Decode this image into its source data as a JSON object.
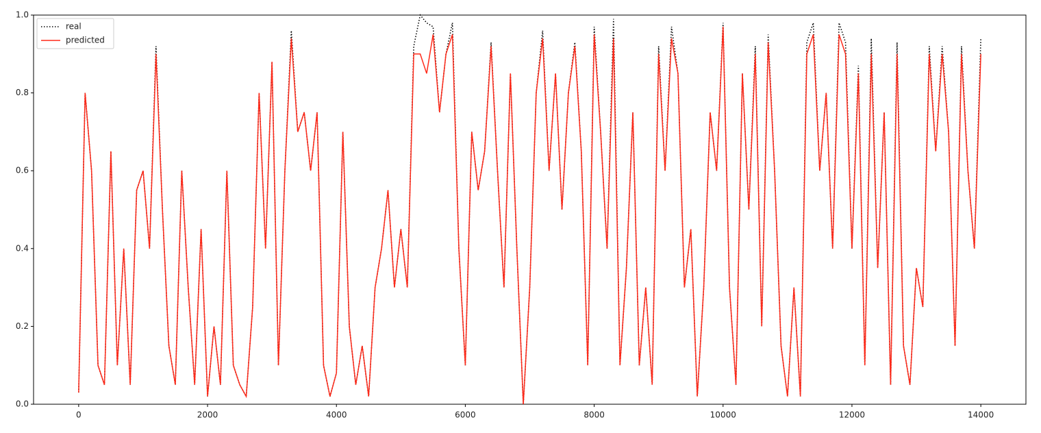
{
  "chart_data": {
    "type": "line",
    "x": [
      0,
      100,
      200,
      300,
      400,
      500,
      600,
      700,
      800,
      900,
      1000,
      1100,
      1200,
      1300,
      1400,
      1500,
      1600,
      1700,
      1800,
      1900,
      2000,
      2100,
      2200,
      2300,
      2400,
      2500,
      2600,
      2700,
      2800,
      2900,
      3000,
      3100,
      3200,
      3300,
      3400,
      3500,
      3600,
      3700,
      3800,
      3900,
      4000,
      4100,
      4200,
      4300,
      4400,
      4500,
      4600,
      4700,
      4800,
      4900,
      5000,
      5100,
      5200,
      5300,
      5400,
      5500,
      5600,
      5700,
      5800,
      5900,
      6000,
      6100,
      6200,
      6300,
      6400,
      6500,
      6600,
      6700,
      6800,
      6900,
      7000,
      7100,
      7200,
      7300,
      7400,
      7500,
      7600,
      7700,
      7800,
      7900,
      8000,
      8100,
      8200,
      8300,
      8400,
      8500,
      8600,
      8700,
      8800,
      8900,
      9000,
      9100,
      9200,
      9300,
      9400,
      9500,
      9600,
      9700,
      9800,
      9900,
      10000,
      10100,
      10200,
      10300,
      10400,
      10500,
      10600,
      10700,
      10800,
      10900,
      11000,
      11100,
      11200,
      11300,
      11400,
      11500,
      11600,
      11700,
      11800,
      11900,
      12000,
      12100,
      12200,
      12300,
      12400,
      12500,
      12600,
      12700,
      12800,
      12900,
      13000,
      13100,
      13200,
      13300,
      13400,
      13500,
      13600,
      13700,
      13800,
      13900,
      14000
    ],
    "series": [
      {
        "name": "real",
        "color": "#000000",
        "dash": "dotted",
        "values": [
          0.03,
          0.8,
          0.6,
          0.1,
          0.05,
          0.65,
          0.1,
          0.4,
          0.05,
          0.55,
          0.6,
          0.4,
          0.92,
          0.5,
          0.15,
          0.05,
          0.6,
          0.3,
          0.05,
          0.45,
          0.02,
          0.2,
          0.05,
          0.6,
          0.1,
          0.05,
          0.02,
          0.25,
          0.8,
          0.4,
          0.88,
          0.1,
          0.6,
          0.96,
          0.7,
          0.75,
          0.6,
          0.75,
          0.1,
          0.02,
          0.08,
          0.7,
          0.2,
          0.05,
          0.15,
          0.02,
          0.3,
          0.4,
          0.55,
          0.3,
          0.45,
          0.3,
          0.92,
          1.0,
          0.98,
          0.97,
          0.75,
          0.9,
          0.98,
          0.4,
          0.1,
          0.7,
          0.55,
          0.65,
          0.93,
          0.6,
          0.3,
          0.85,
          0.4,
          0.0,
          0.3,
          0.8,
          0.96,
          0.6,
          0.85,
          0.5,
          0.8,
          0.93,
          0.65,
          0.1,
          0.97,
          0.7,
          0.4,
          0.99,
          0.1,
          0.35,
          0.75,
          0.1,
          0.3,
          0.05,
          0.92,
          0.6,
          0.97,
          0.85,
          0.3,
          0.45,
          0.02,
          0.3,
          0.75,
          0.6,
          0.98,
          0.3,
          0.05,
          0.85,
          0.5,
          0.92,
          0.2,
          0.95,
          0.6,
          0.15,
          0.02,
          0.3,
          0.02,
          0.93,
          0.98,
          0.6,
          0.8,
          0.4,
          0.98,
          0.93,
          0.4,
          0.87,
          0.1,
          0.94,
          0.35,
          0.75,
          0.05,
          0.93,
          0.15,
          0.05,
          0.35,
          0.25,
          0.92,
          0.65,
          0.92,
          0.7,
          0.15,
          0.92,
          0.6,
          0.4,
          0.94
        ]
      },
      {
        "name": "predicted",
        "color": "#ff2a1a",
        "dash": "solid",
        "values": [
          0.03,
          0.8,
          0.6,
          0.1,
          0.05,
          0.65,
          0.1,
          0.4,
          0.05,
          0.55,
          0.6,
          0.4,
          0.9,
          0.5,
          0.15,
          0.05,
          0.6,
          0.3,
          0.05,
          0.45,
          0.02,
          0.2,
          0.05,
          0.6,
          0.1,
          0.05,
          0.02,
          0.25,
          0.8,
          0.4,
          0.88,
          0.1,
          0.6,
          0.94,
          0.7,
          0.75,
          0.6,
          0.75,
          0.1,
          0.02,
          0.08,
          0.7,
          0.2,
          0.05,
          0.15,
          0.02,
          0.3,
          0.4,
          0.55,
          0.3,
          0.45,
          0.3,
          0.9,
          0.9,
          0.85,
          0.95,
          0.75,
          0.9,
          0.95,
          0.4,
          0.1,
          0.7,
          0.55,
          0.65,
          0.92,
          0.6,
          0.3,
          0.85,
          0.4,
          0.0,
          0.3,
          0.8,
          0.94,
          0.6,
          0.85,
          0.5,
          0.8,
          0.92,
          0.65,
          0.1,
          0.95,
          0.7,
          0.4,
          0.94,
          0.1,
          0.35,
          0.75,
          0.1,
          0.3,
          0.05,
          0.9,
          0.6,
          0.94,
          0.85,
          0.3,
          0.45,
          0.02,
          0.3,
          0.75,
          0.6,
          0.97,
          0.3,
          0.05,
          0.85,
          0.5,
          0.9,
          0.2,
          0.93,
          0.6,
          0.15,
          0.02,
          0.3,
          0.02,
          0.9,
          0.95,
          0.6,
          0.8,
          0.4,
          0.95,
          0.9,
          0.4,
          0.85,
          0.1,
          0.9,
          0.35,
          0.75,
          0.05,
          0.9,
          0.15,
          0.05,
          0.35,
          0.25,
          0.9,
          0.65,
          0.9,
          0.7,
          0.15,
          0.9,
          0.6,
          0.4,
          0.9
        ]
      }
    ],
    "xlim": [
      -700,
      14700
    ],
    "ylim": [
      0,
      1
    ],
    "xticks": [
      0,
      2000,
      4000,
      6000,
      8000,
      10000,
      12000,
      14000
    ],
    "yticks": [
      {
        "value": 0,
        "label": "0.0"
      },
      0.2,
      0.4,
      0.6,
      0.8,
      {
        "value": 1,
        "label": "1.0"
      }
    ],
    "legend": "upper left"
  }
}
